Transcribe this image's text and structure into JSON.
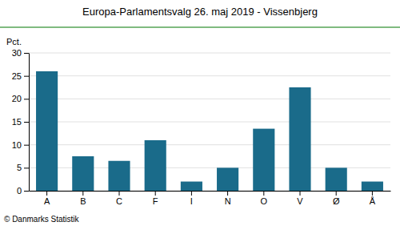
{
  "chart_data": {
    "type": "bar",
    "title": "Europa-Parlamentsvalg 26. maj 2019 - Vissenbjerg",
    "categories": [
      "A",
      "B",
      "C",
      "F",
      "I",
      "N",
      "O",
      "V",
      "Ø",
      "Å"
    ],
    "values": [
      26.0,
      7.5,
      6.5,
      11.0,
      2.0,
      5.0,
      13.5,
      22.5,
      5.0,
      2.0
    ],
    "color": "#1a6b8a",
    "ylabel": "Pct.",
    "footer": "© Danmarks Statistik",
    "ylim": [
      0,
      30
    ],
    "yticks": [
      0,
      5,
      10,
      15,
      20,
      25,
      30
    ],
    "grid": true
  }
}
